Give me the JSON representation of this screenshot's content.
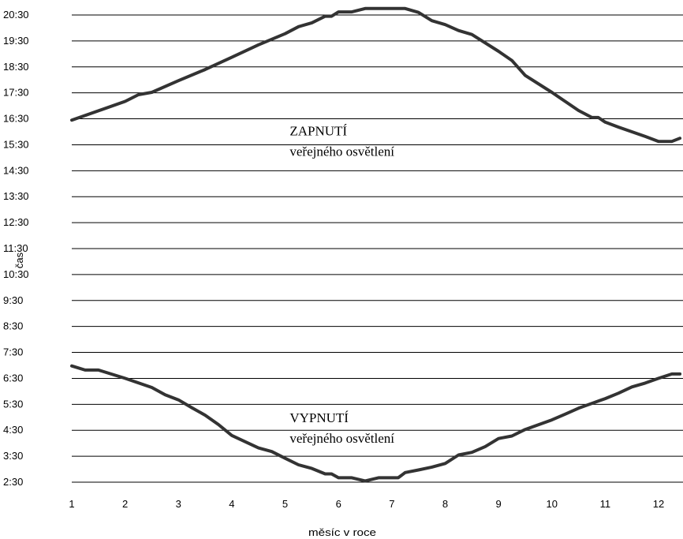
{
  "chart_data": {
    "type": "line",
    "xlabel": "měsíc v roce",
    "ylabel": "čas",
    "x_ticks": [
      "1",
      "2",
      "3",
      "4",
      "5",
      "6",
      "7",
      "8",
      "9",
      "10",
      "11",
      "12"
    ],
    "y_ticks": [
      "2:30",
      "3:30",
      "4:30",
      "5:30",
      "6:30",
      "7:30",
      "8:30",
      "9:30",
      "10:30",
      "11:30",
      "12:30",
      "13:30",
      "14:30",
      "15:30",
      "16:30",
      "17:30",
      "18:30",
      "19:30",
      "20:30"
    ],
    "xlim": [
      1,
      12.4
    ],
    "ylim_hours": [
      2.5,
      20.5
    ],
    "grid": true,
    "annotations": [
      {
        "text": "ZAPNUTÍ",
        "x": 5.5,
        "y": 16.05
      },
      {
        "text": "veřejného osvětlení",
        "x": 5.5,
        "y": 15.25
      },
      {
        "text": "VYPNUTÍ",
        "x": 5.5,
        "y": 5.0
      },
      {
        "text": "veřejného osvětlení",
        "x": 5.5,
        "y": 4.2
      }
    ],
    "series": [
      {
        "x": [
          1,
          2,
          2.25,
          2.5,
          3,
          3.5,
          4,
          4.5,
          5,
          5.25,
          5.5,
          5.75,
          5.87,
          6,
          6.25,
          6.5,
          7,
          7.25,
          7.5,
          7.75,
          8,
          8.25,
          8.5,
          9,
          9.25,
          9.5,
          10,
          10.25,
          10.5,
          10.75,
          10.87,
          11,
          11.25,
          11.5,
          11.75,
          12,
          12.25,
          12.4
        ],
        "values": [
          16.45,
          17.17,
          17.43,
          17.52,
          17.97,
          18.4,
          18.87,
          19.35,
          19.78,
          20.05,
          20.2,
          20.45,
          20.45,
          20.62,
          20.62,
          20.75,
          20.75,
          20.75,
          20.6,
          20.28,
          20.13,
          19.9,
          19.75,
          19.1,
          18.75,
          18.17,
          17.52,
          17.17,
          16.82,
          16.55,
          16.55,
          16.37,
          16.18,
          16.0,
          15.82,
          15.63,
          15.63,
          15.75
        ]
      },
      {
        "x": [
          1,
          1.25,
          1.5,
          2,
          2.5,
          2.75,
          3,
          3.25,
          3.5,
          3.75,
          4,
          4.5,
          4.75,
          5,
          5.25,
          5.5,
          5.75,
          5.87,
          6,
          6.25,
          6.5,
          6.75,
          7.12,
          7.25,
          7.5,
          7.75,
          8,
          8.25,
          8.5,
          8.75,
          9,
          9.25,
          9.5,
          10,
          10.25,
          10.5,
          11,
          11.25,
          11.5,
          11.75,
          12,
          12.25,
          12.4
        ],
        "values": [
          6.98,
          6.82,
          6.82,
          6.5,
          6.15,
          5.87,
          5.67,
          5.37,
          5.08,
          4.72,
          4.3,
          3.82,
          3.68,
          3.42,
          3.17,
          3.03,
          2.82,
          2.82,
          2.67,
          2.67,
          2.55,
          2.67,
          2.67,
          2.87,
          2.97,
          3.08,
          3.22,
          3.55,
          3.65,
          3.87,
          4.18,
          4.28,
          4.53,
          4.9,
          5.12,
          5.35,
          5.72,
          5.93,
          6.17,
          6.32,
          6.5,
          6.67,
          6.67
        ]
      }
    ]
  }
}
